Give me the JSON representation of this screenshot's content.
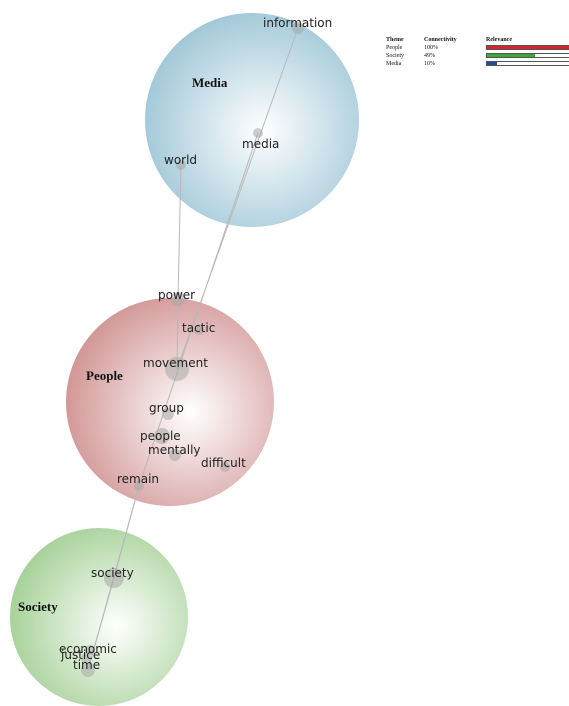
{
  "legend": {
    "headers": {
      "theme": "Theme",
      "connectivity": "Connectivity",
      "relevance": "Relevance"
    },
    "rows": [
      {
        "theme": "People",
        "connectivity": "100%",
        "relevance": 1.0,
        "color": "#d9232b"
      },
      {
        "theme": "Society",
        "connectivity": "49%",
        "relevance": 0.49,
        "color": "#3aa838"
      },
      {
        "theme": "Media",
        "connectivity": "10%",
        "relevance": 0.1,
        "color": "#1b4f91"
      }
    ]
  },
  "themes": [
    {
      "id": "media",
      "label": "Media",
      "color": "#9ec8d8",
      "concepts": [
        "information",
        "media",
        "world"
      ]
    },
    {
      "id": "people",
      "label": "People",
      "color": "#d49c9c",
      "concepts": [
        "power",
        "tactic",
        "movement",
        "group",
        "people",
        "mentally",
        "difficult",
        "remain"
      ]
    },
    {
      "id": "society",
      "label": "Society",
      "color": "#a9d29b",
      "concepts": [
        "society",
        "economic",
        "justice",
        "time"
      ]
    }
  ],
  "concepts": {
    "information": "information",
    "media": "media",
    "world": "world",
    "power": "power",
    "tactic": "tactic",
    "movement": "movement",
    "group": "group",
    "people": "people",
    "mentally": "mentally",
    "difficult": "difficult",
    "remain": "remain",
    "society": "society",
    "economic": "economic",
    "justice": "justice",
    "time": "time"
  },
  "links": [
    [
      "information",
      "movement"
    ],
    [
      "media",
      "remain"
    ],
    [
      "world",
      "power"
    ],
    [
      "power",
      "movement"
    ],
    [
      "remain",
      "society"
    ],
    [
      "remain",
      "time"
    ],
    [
      "society",
      "time"
    ]
  ]
}
